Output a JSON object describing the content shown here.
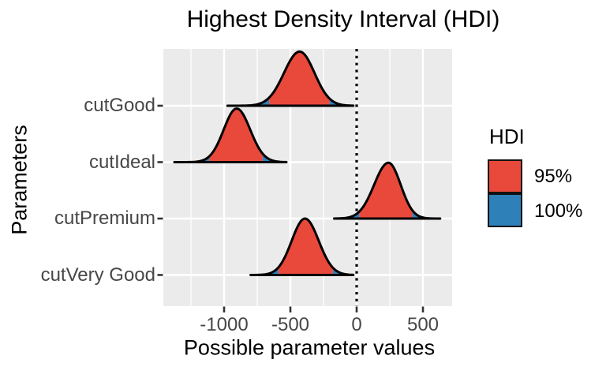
{
  "chart_data": {
    "type": "area",
    "variant": "density_ridges_hdi",
    "title": "Highest Density Interval (HDI)",
    "xlabel": "Possible parameter values",
    "ylabel": "Parameters",
    "x_major_ticks": [
      -1000,
      -500,
      0,
      500
    ],
    "x_tick_labels": [
      "-1000",
      "-500",
      "0",
      "500"
    ],
    "x_minor_ticks": [
      -1250,
      -750,
      -250,
      250
    ],
    "xlim": [
      -1460,
      720
    ],
    "categories": [
      "cutGood",
      "cutIdeal",
      "cutPremium",
      "cutVery Good"
    ],
    "reference_line_x": 0,
    "grid": true,
    "legend": {
      "title": "HDI",
      "position": "right",
      "entries": [
        {
          "label": "95%",
          "color": "#E8493B"
        },
        {
          "label": "100%",
          "color": "#2E80B9"
        }
      ]
    },
    "style": {
      "panel_bg": "#EBEBEB",
      "grid_color": "#FFFFFF",
      "outline_color": "#000000",
      "tick_color": "#333333",
      "tick_label_color": "#474747",
      "hdi95_fill": "#E8493B",
      "hdi100_fill": "#2E80B9",
      "reference_line_color": "#000000"
    },
    "series": [
      {
        "name": "cutGood",
        "mode": -430,
        "hdi_95": [
          -660,
          -205
        ],
        "hdi_100": [
          -975,
          -25
        ],
        "sd_left": 118,
        "sd_right": 112,
        "rel_height": 0.96
      },
      {
        "name": "cutIdeal",
        "mode": -905,
        "hdi_95": [
          -1110,
          -710
        ],
        "hdi_100": [
          -1375,
          -530
        ],
        "sd_left": 98,
        "sd_right": 102,
        "rel_height": 0.95
      },
      {
        "name": "cutPremium",
        "mode": 240,
        "hdi_95": [
          20,
          420
        ],
        "hdi_100": [
          -170,
          630
        ],
        "sd_left": 108,
        "sd_right": 92,
        "rel_height": 0.99
      },
      {
        "name": "cutVery Good",
        "mode": -390,
        "hdi_95": [
          -590,
          -180
        ],
        "hdi_100": [
          -800,
          -25
        ],
        "sd_left": 100,
        "sd_right": 104,
        "rel_height": 1.0
      }
    ]
  }
}
